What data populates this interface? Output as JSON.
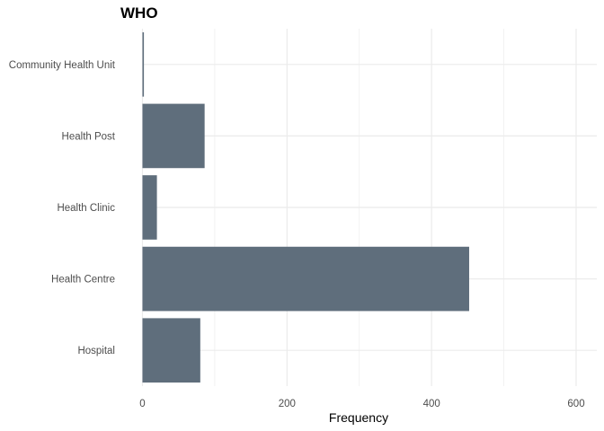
{
  "chart_data": {
    "type": "bar",
    "orientation": "horizontal",
    "title": "WHO",
    "xlabel": "Frequency",
    "ylabel": "",
    "categories": [
      "Hospital",
      "Health Centre",
      "Health Clinic",
      "Health Post",
      "Community Health Unit"
    ],
    "values": [
      80,
      452,
      20,
      86,
      2
    ],
    "xlim": [
      0,
      630
    ],
    "xticks": [
      0,
      200,
      400,
      600
    ],
    "grid": true,
    "bar_color": "#5f6e7c",
    "grid_color": "#ebebeb"
  }
}
